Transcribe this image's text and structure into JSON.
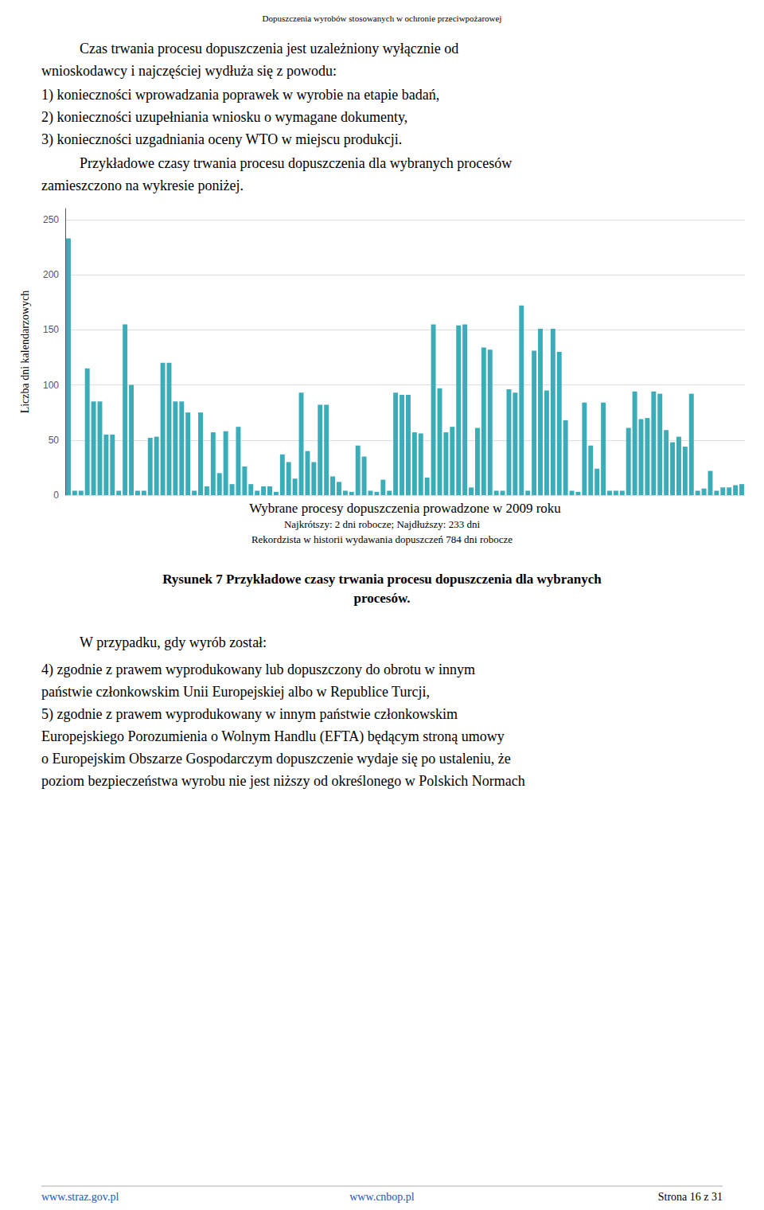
{
  "chart_data": {
    "type": "bar",
    "title": "Dopuszczenia wyrobów stosowanych w ochronie przeciwpożarowej",
    "xlabel": "Wybrane procesy dopuszczenia prowadzone w 2009 roku",
    "ylabel": "Liczba dni kalendarzowych",
    "categories": [
      null,
      null,
      null,
      null,
      null,
      null,
      null,
      null,
      null,
      null,
      null,
      null,
      null,
      null,
      null,
      null,
      null,
      null,
      null,
      null,
      null,
      null,
      null,
      null,
      null,
      null,
      null,
      null,
      null,
      null,
      null,
      null,
      null,
      null,
      null,
      null,
      null,
      null,
      null,
      null,
      null,
      null,
      null,
      null,
      null,
      null,
      null,
      null,
      null,
      null,
      null,
      null,
      null,
      null,
      null,
      null,
      null,
      null,
      null,
      null,
      null,
      null,
      null,
      null,
      null,
      null,
      null,
      null,
      null,
      null,
      null,
      null,
      null,
      null,
      null,
      null,
      null,
      null,
      null,
      null,
      null,
      null,
      null,
      null,
      null,
      null,
      null,
      null,
      null,
      null,
      null,
      null,
      null,
      null,
      null,
      null,
      null,
      null,
      null,
      null,
      null,
      null,
      null,
      null,
      null,
      null,
      null,
      null
    ],
    "values": [
      233,
      4,
      4,
      115,
      85,
      85,
      55,
      55,
      4,
      155,
      100,
      4,
      4,
      52,
      53,
      120,
      120,
      85,
      85,
      75,
      4,
      75,
      8,
      57,
      20,
      58,
      10,
      62,
      26,
      10,
      4,
      8,
      8,
      3,
      37,
      30,
      15,
      93,
      40,
      30,
      82,
      82,
      17,
      12,
      4,
      3,
      45,
      35,
      4,
      3,
      14,
      4,
      93,
      91,
      91,
      57,
      56,
      16,
      155,
      97,
      57,
      62,
      154,
      155,
      7,
      61,
      134,
      132,
      4,
      4,
      96,
      93,
      172,
      4,
      131,
      151,
      95,
      151,
      130,
      68,
      4,
      3,
      84,
      45,
      24,
      84,
      4,
      4,
      4,
      61,
      94,
      69,
      70,
      94,
      92,
      59,
      48,
      53,
      44,
      92,
      4,
      6,
      22,
      4,
      7,
      7,
      9,
      10
    ],
    "color": "#3BADB8",
    "ylim": [
      0,
      260
    ],
    "yticks": [
      0,
      50,
      100,
      150,
      200,
      250
    ],
    "grid": true,
    "tick_labels": "y",
    "annotations": [
      "Czas trwania procesu dopuszczenia jest uzależniony wyłącznie od",
      "wnioskodawcy i najczęściej wydłuża się z powodu:",
      "1) konieczności wprowadzania poprawek w wyrobie na etapie badań,",
      "2) konieczności uzupełniania wniosku o wymagane dokumenty,",
      "3) konieczności uzgadniania oceny WTO w miejscu produkcji.",
      "Przykładowe czasy trwania procesu dopuszczenia dla wybranych procesów",
      "zamieszczono na wykresie poniżej.",
      "Najkrótszy: 2 dni robocze; Najdłuższy: 233 dni",
      "Rekordzista w historii wydawania dopuszczeń 784 dni robocze",
      "Rysunek 7 Przykładowe czasy trwania procesu dopuszczenia dla wybranych",
      "procesów.",
      "W przypadku, gdy wyrób został:",
      "4) zgodnie z prawem wyprodukowany lub dopuszczony do obrotu w innym",
      "państwie członkowskim Unii Europejskiej albo w Republice Turcji,",
      "5) zgodnie z prawem wyprodukowany w innym państwie członkowskim",
      "Europejskiego Porozumienia o Wolnym Handlu (EFTA) będącym stroną umowy",
      "o Europejskim Obszarze Gospodarczym dopuszczenie wydaje się po ustaleniu, że",
      "poziom bezpieczeństwa wyrobu nie jest niższy od określonego w Polskich Normach",
      "www.straz.gov.pl",
      "www.cnbop.pl",
      "Strona 16 z 31"
    ]
  }
}
